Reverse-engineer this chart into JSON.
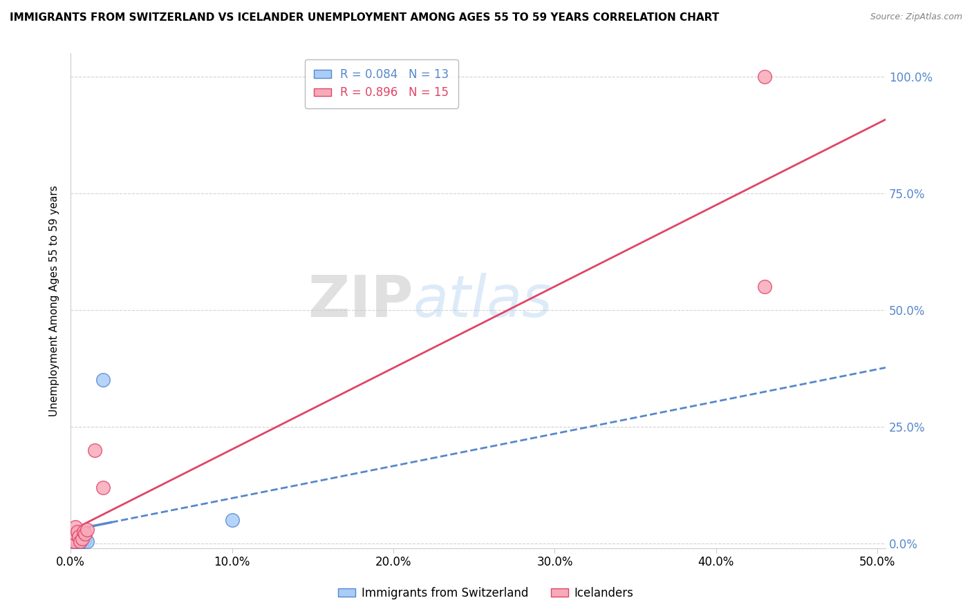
{
  "title": "IMMIGRANTS FROM SWITZERLAND VS ICELANDER UNEMPLOYMENT AMONG AGES 55 TO 59 YEARS CORRELATION CHART",
  "source": "Source: ZipAtlas.com",
  "xlabel_ticks": [
    "0.0%",
    "10.0%",
    "20.0%",
    "30.0%",
    "40.0%",
    "50.0%"
  ],
  "ylabel_ticks": [
    "0.0%",
    "25.0%",
    "50.0%",
    "75.0%",
    "100.0%"
  ],
  "ylabel_label": "Unemployment Among Ages 55 to 59 years",
  "legend_label1": "Immigrants from Switzerland",
  "legend_label2": "Icelanders",
  "R1": "0.084",
  "N1": "13",
  "R2": "0.896",
  "N2": "15",
  "color1": "#aaccf8",
  "color1_line": "#5588cc",
  "color2": "#f8aabb",
  "color2_line": "#e04466",
  "watermark_zip": "ZIP",
  "watermark_atlas": "atlas",
  "swiss_x": [
    0.001,
    0.002,
    0.003,
    0.003,
    0.004,
    0.005,
    0.006,
    0.007,
    0.008,
    0.009,
    0.01,
    0.02,
    0.1
  ],
  "swiss_y": [
    0.005,
    0.01,
    0.005,
    0.02,
    0.005,
    0.01,
    0.005,
    0.005,
    0.005,
    0.01,
    0.005,
    0.35,
    0.05
  ],
  "icelander_x": [
    0.001,
    0.002,
    0.003,
    0.003,
    0.004,
    0.005,
    0.006,
    0.007,
    0.008,
    0.009,
    0.01,
    0.015,
    0.02,
    0.43,
    0.43
  ],
  "icelander_y": [
    0.01,
    0.005,
    0.02,
    0.035,
    0.025,
    0.015,
    0.005,
    0.01,
    0.025,
    0.02,
    0.03,
    0.2,
    0.12,
    0.55,
    1.0
  ],
  "xlim": [
    0.0,
    0.505
  ],
  "ylim": [
    -0.01,
    1.05
  ]
}
